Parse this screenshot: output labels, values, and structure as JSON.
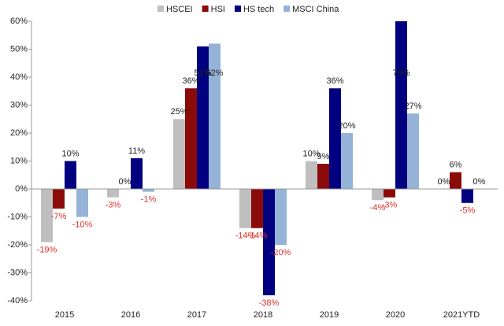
{
  "chart_data": {
    "type": "bar",
    "categories": [
      "2015",
      "2016",
      "2017",
      "2018",
      "2019",
      "2020",
      "2021YTD"
    ],
    "series": [
      {
        "name": "HSCEI",
        "color": "#bfbfbf",
        "values": [
          -19,
          -3,
          25,
          -14,
          10,
          -4,
          0
        ],
        "value_labels": [
          "-19%",
          "-3%",
          "25%",
          "-14%",
          "10%",
          "-4%",
          "0%"
        ]
      },
      {
        "name": "HSI",
        "color": "#8b0a0a",
        "values": [
          -7,
          0,
          36,
          -14,
          9,
          -3,
          6
        ],
        "value_labels": [
          "-7%",
          "0%",
          "36%",
          "-14%",
          "9%",
          "-3%",
          "6%"
        ]
      },
      {
        "name": "HS tech",
        "color": "#000080",
        "values": [
          10,
          11,
          51,
          -38,
          36,
          79,
          -5
        ],
        "value_labels": [
          "10%",
          "11%",
          "51%",
          "-38%",
          "36%",
          "79%",
          "-5%"
        ]
      },
      {
        "name": "MSCI China",
        "color": "#95b3d7",
        "values": [
          -10,
          -1,
          52,
          -20,
          20,
          27,
          0
        ],
        "value_labels": [
          "-10%",
          "-1%",
          "52%",
          "-20%",
          "20%",
          "27%",
          "0%"
        ]
      }
    ],
    "ylim": [
      -40,
      60
    ],
    "yticks": [
      {
        "value": -40,
        "label": "-40%"
      },
      {
        "value": -30,
        "label": "-30%"
      },
      {
        "value": -20,
        "label": "-20%"
      },
      {
        "value": -10,
        "label": "-10%"
      },
      {
        "value": 0,
        "label": "0%"
      },
      {
        "value": 10,
        "label": "10%"
      },
      {
        "value": 20,
        "label": "20%"
      },
      {
        "value": 30,
        "label": "30%"
      },
      {
        "value": 40,
        "label": "40%"
      },
      {
        "value": 50,
        "label": "50%"
      },
      {
        "value": 60,
        "label": "60%"
      }
    ],
    "legend": "top"
  }
}
